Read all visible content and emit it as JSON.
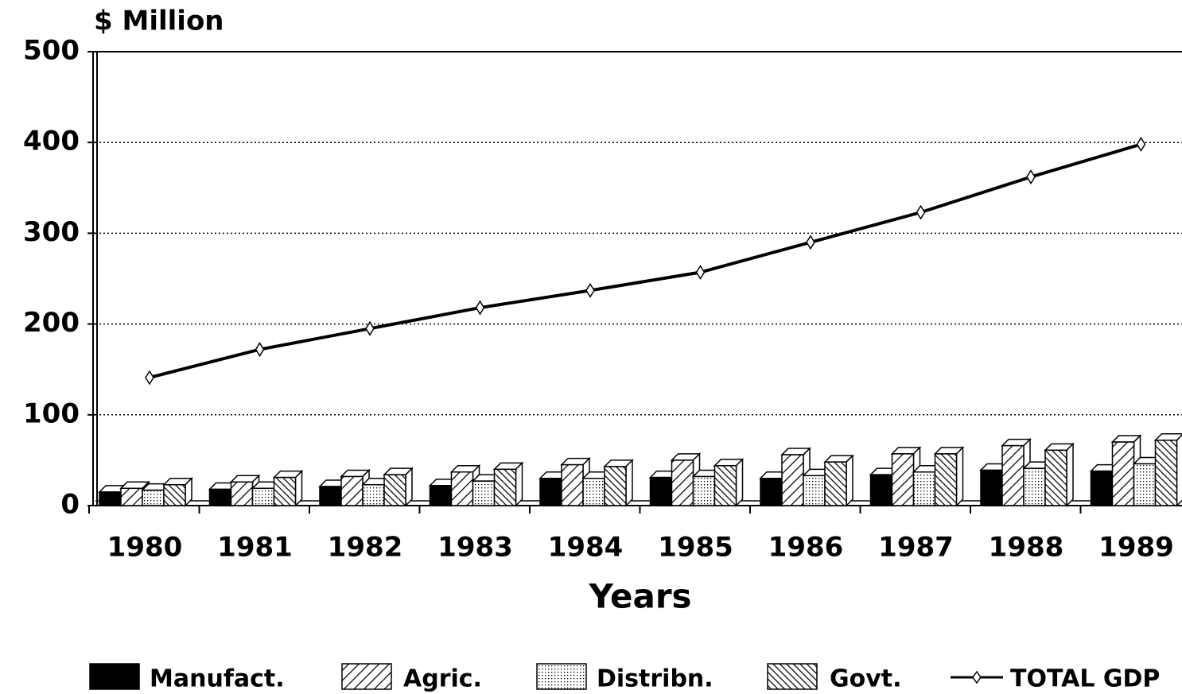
{
  "chart_data": {
    "type": "bar",
    "ylabel": "$ Million",
    "xlabel": "Years",
    "categories": [
      "1980",
      "1981",
      "1982",
      "1983",
      "1984",
      "1985",
      "1986",
      "1987",
      "1988",
      "1989"
    ],
    "series": [
      {
        "name": "Manufact.",
        "type": "bar",
        "pattern": "solid",
        "color": "#000000",
        "values": [
          15,
          18,
          21,
          22,
          30,
          31,
          30,
          34,
          39,
          38
        ]
      },
      {
        "name": "Agric.",
        "type": "bar",
        "pattern": "diagonal",
        "color": "#000000",
        "values": [
          19,
          26,
          32,
          37,
          45,
          50,
          56,
          57,
          66,
          70
        ]
      },
      {
        "name": "Distribn.",
        "type": "bar",
        "pattern": "dots",
        "color": "#000000",
        "values": [
          17,
          19,
          23,
          27,
          30,
          32,
          33,
          37,
          41,
          46
        ]
      },
      {
        "name": "Govt.",
        "type": "bar",
        "pattern": "back-diagonal",
        "color": "#000000",
        "values": [
          23,
          31,
          34,
          40,
          43,
          44,
          48,
          57,
          61,
          72
        ]
      },
      {
        "name": "TOTAL GDP",
        "type": "line",
        "color": "#000000",
        "values": [
          141,
          172,
          195,
          218,
          237,
          257,
          290,
          323,
          362,
          398
        ]
      }
    ],
    "ylim": [
      0,
      500
    ],
    "yticks": [
      0,
      100,
      200,
      300,
      400,
      500
    ],
    "grid": true
  }
}
